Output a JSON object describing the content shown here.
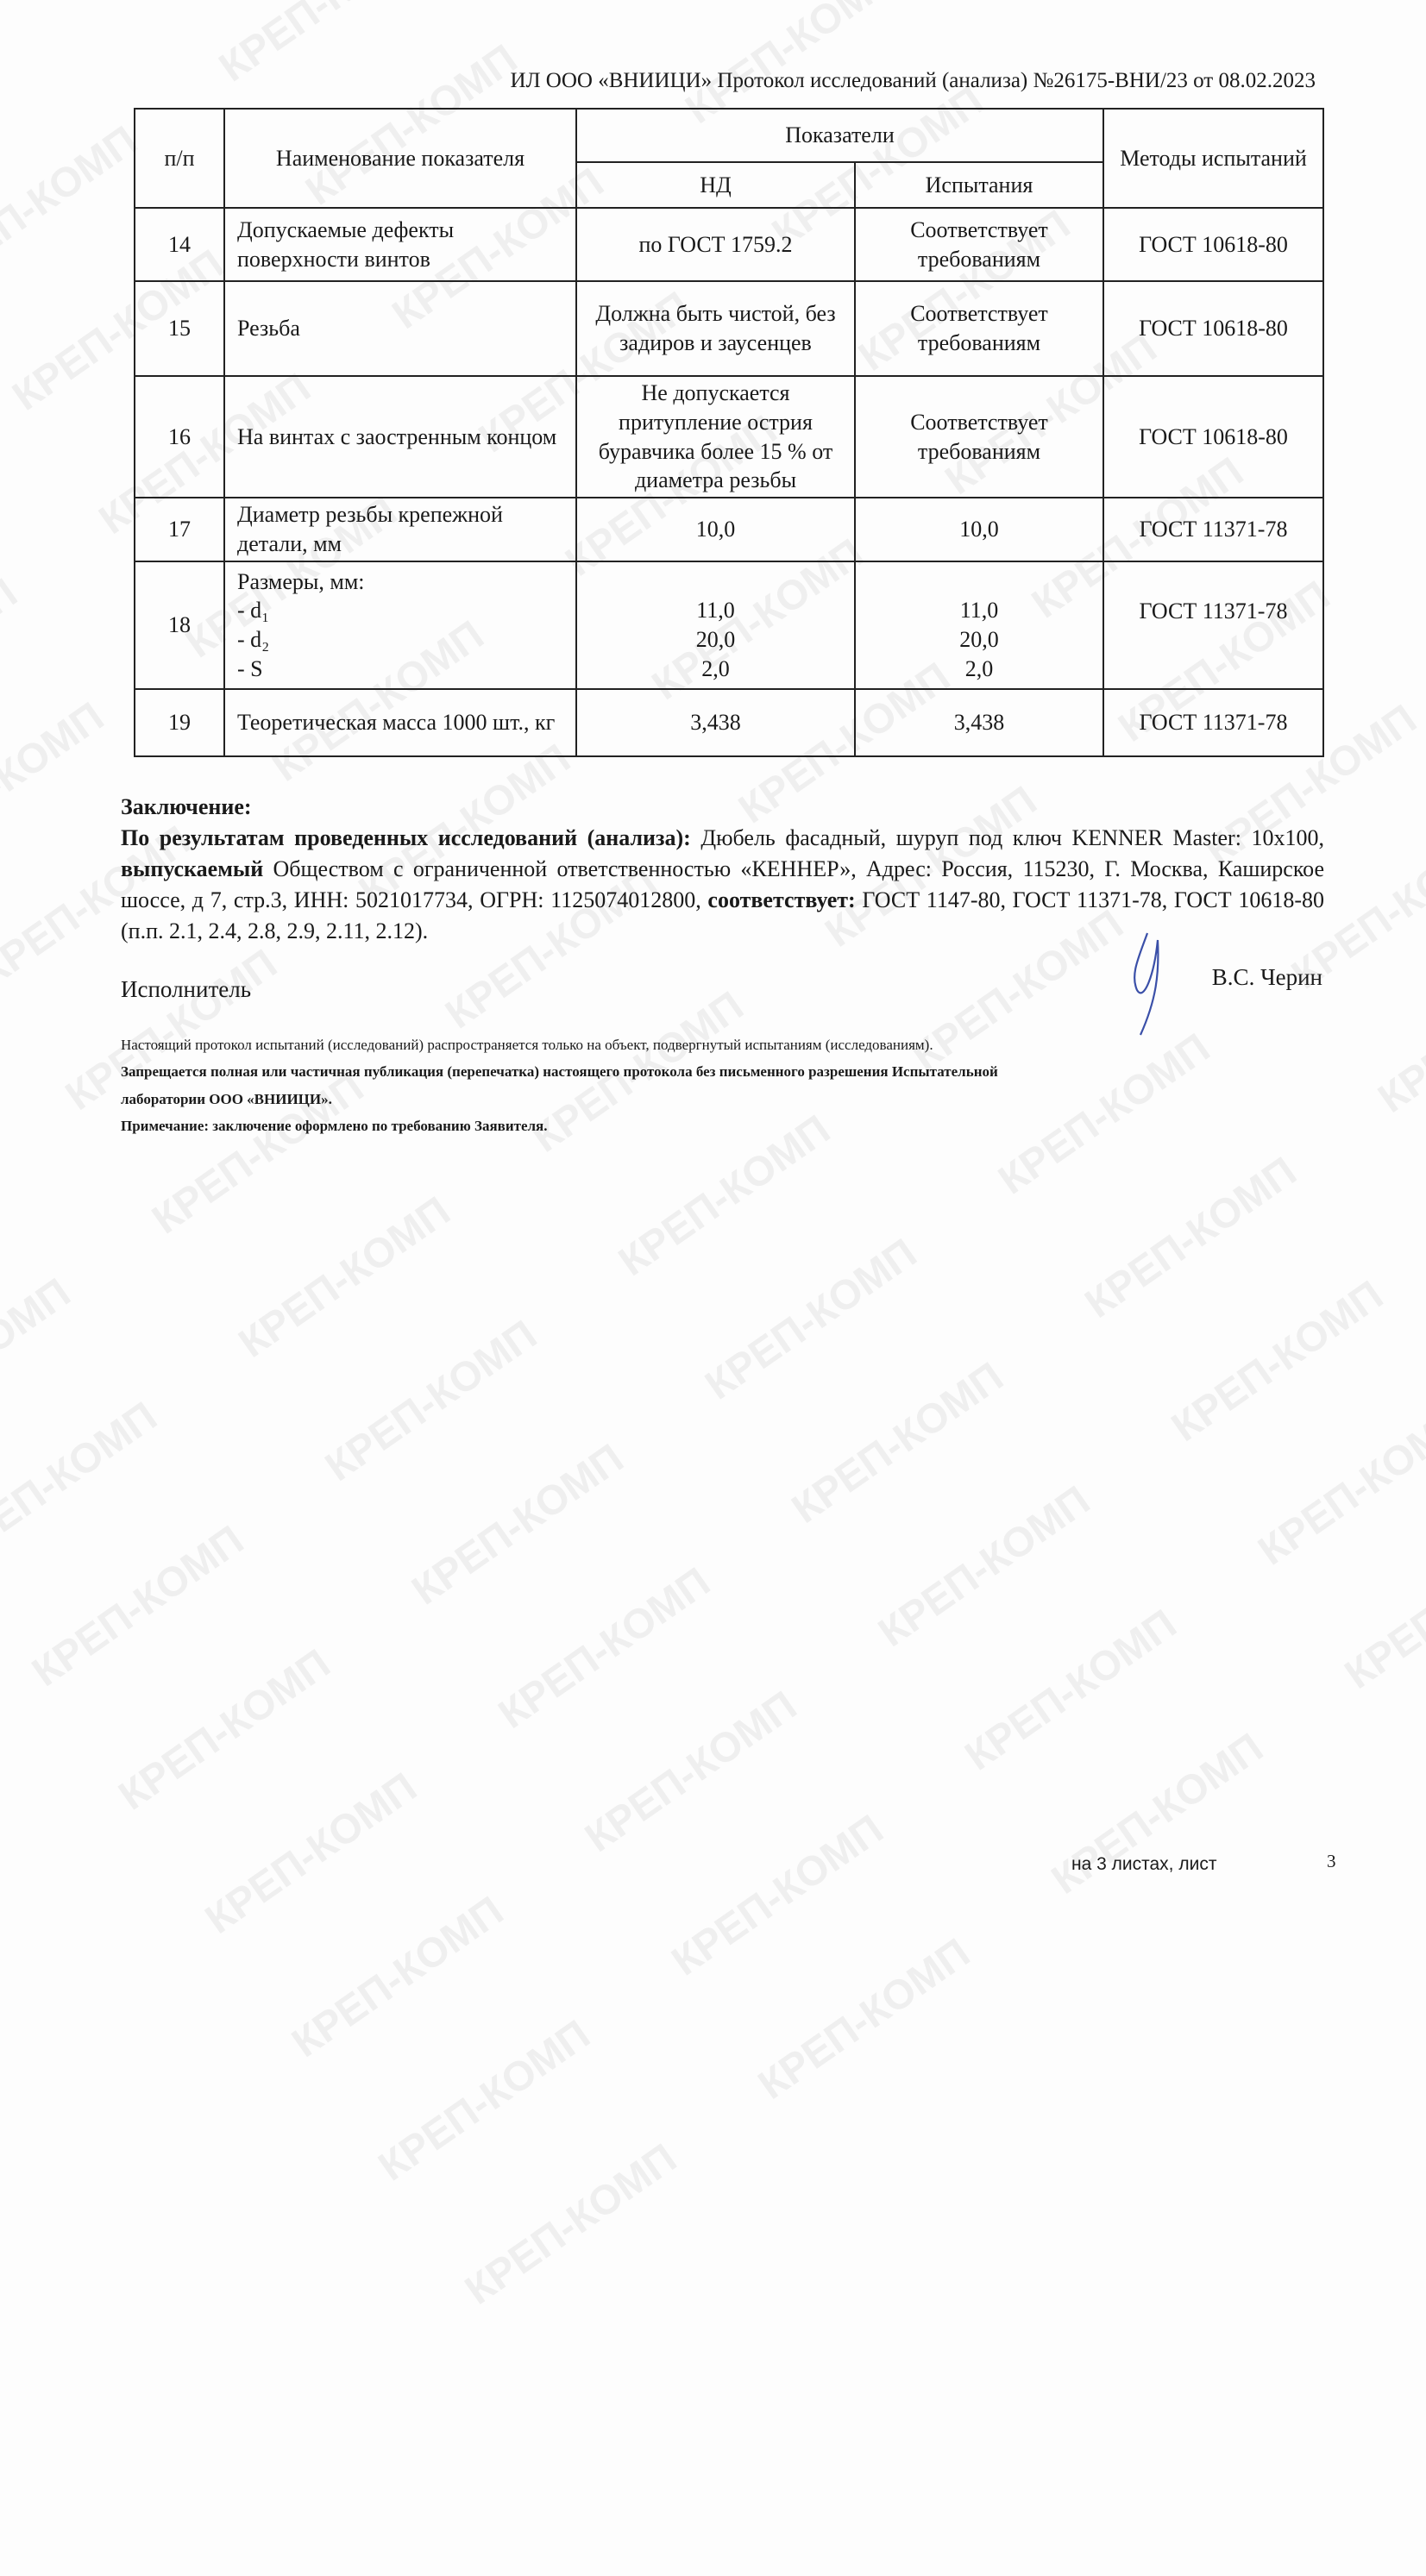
{
  "watermark": "КРЕП-КОМП",
  "header": "ИЛ ООО «ВНИИЦИ» Протокол исследований (анализа)  №26175-ВНИ/23 от  08.02.2023",
  "table": {
    "col_num": "п/п",
    "col_name": "Наименование показателя",
    "col_group": "Показатели",
    "col_nd": "НД",
    "col_test": "Испытания",
    "col_method": "Методы испытаний",
    "rows": [
      {
        "n": "14",
        "name": "Допускаемые дефекты поверхности винтов",
        "nd": "по ГОСТ 1759.2",
        "test": "Соответствует требованиям",
        "method": "ГОСТ 10618-80"
      },
      {
        "n": "15",
        "name": "Резьба",
        "nd": "Должна быть чистой, без задиров и заусенцев",
        "test": "Соответствует требованиям",
        "method": "ГОСТ 10618-80"
      },
      {
        "n": "16",
        "name": "На винтах с заостренным концом",
        "nd": "Не допускается притупление острия буравчика более 15 % от диаметра резьбы",
        "test": "Соответствует требованиям",
        "method": "ГОСТ 10618-80"
      },
      {
        "n": "17",
        "name": "Диаметр резьбы крепежной детали, мм",
        "nd": "10,0",
        "test": "10,0",
        "method": "ГОСТ 11371-78"
      },
      {
        "n": "18",
        "name_title": "Размеры, мм:",
        "subs": [
          "- d₁",
          "- d₂",
          "- S"
        ],
        "nd_vals": [
          "11,0",
          "20,0",
          "2,0"
        ],
        "test_vals": [
          "11,0",
          "20,0",
          "2,0"
        ],
        "method": "ГОСТ 11371-78"
      },
      {
        "n": "19",
        "name": "Теоретическая масса 1000 шт., кг",
        "nd": "3,438",
        "test": "3,438",
        "method": "ГОСТ 11371-78"
      }
    ]
  },
  "conclusion": {
    "title": "Заключение:",
    "lead": "По результатам проведенных исследований (анализа):",
    "text1": " Дюбель фасадный, шуруп под ключ KENNER Master: 10x100, ",
    "bold2": "выпускаемый",
    "text2": " Обществом с ограниченной ответственностью «КЕННЕР», Адрес: Россия, 115230, Г. Москва, Каширское шоссе, д 7, стр.3, ИНН: 5021017734, ОГРН: 1125074012800, ",
    "bold3": "соответствует:",
    "text3": " ГОСТ 1147-80, ГОСТ 11371-78, ГОСТ 10618-80 (п.п. 2.1, 2.4, 2.8, 2.9, 2.11, 2.12)."
  },
  "executor_label": "Исполнитель",
  "executor_name": "В.С. Черин",
  "signature_color": "#3a4fa8",
  "notes": {
    "n1": "Настоящий протокол испытаний (исследований) распространяется только на объект, подвергнутый испытаниям (исследованиям).",
    "n2": "Запрещается полная или частичная публикация (перепечатка) настоящего протокола без письменного разрешения Испытательной",
    "n3": "лаборатории  ООО «ВНИИЦИ».",
    "n4": "Примечание: заключение оформлено по требованию Заявителя."
  },
  "footer": {
    "sheets": "на 3  листах, лист",
    "page": "3"
  }
}
